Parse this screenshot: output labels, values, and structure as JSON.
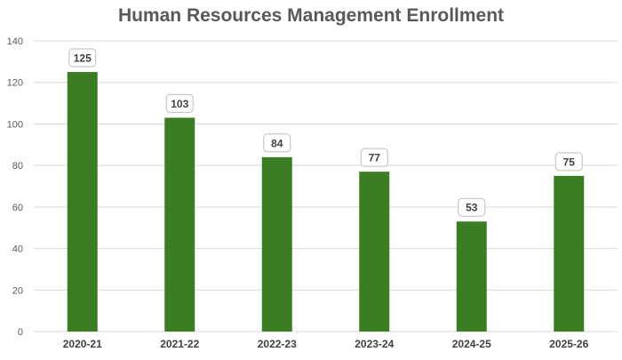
{
  "chart_data": {
    "type": "bar",
    "title": "Human Resources Management Enrollment",
    "xlabel": "",
    "ylabel": "",
    "categories": [
      "2020-21",
      "2021-22",
      "2022-23",
      "2023-24",
      "2024-25",
      "2025-26"
    ],
    "values": [
      125,
      103,
      84,
      77,
      53,
      75
    ],
    "ylim": [
      0,
      140
    ],
    "yticks": [
      0,
      20,
      40,
      60,
      80,
      100,
      120,
      140
    ],
    "grid": true,
    "legend": "none",
    "data_labels": true,
    "colors": {
      "bar": "#3b7d23",
      "grid": "#d9d9d9",
      "axis_text": "#595959",
      "category_text": "#404040",
      "label_border": "#bfbfbf",
      "label_text": "#404040"
    }
  }
}
